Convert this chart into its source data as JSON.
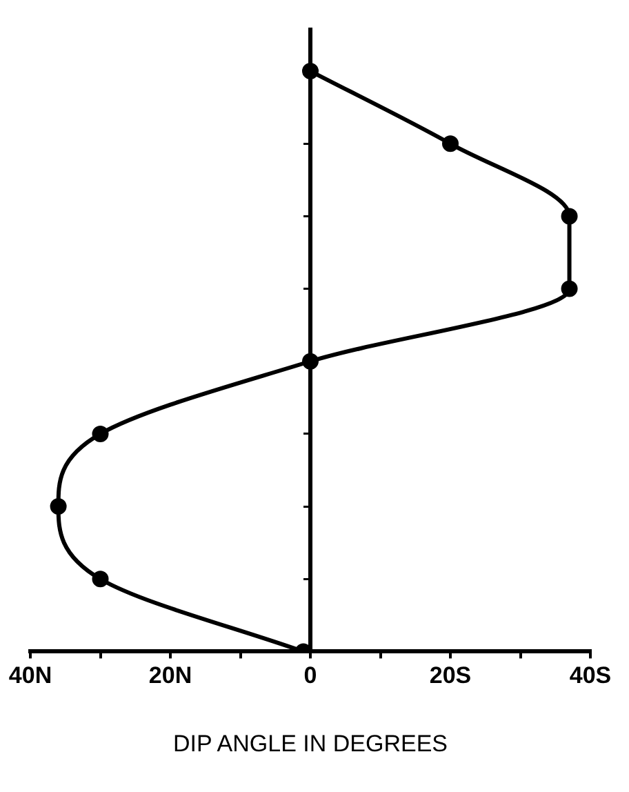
{
  "chart_data": {
    "type": "line",
    "orientation": "horizontal",
    "xlabel": "DIP ANGLE IN DEGREES",
    "categories": [
      null,
      null,
      null,
      null,
      null,
      null,
      null,
      null,
      null
    ],
    "series": [
      {
        "color": "#000000",
        "values": [
          0,
          20,
          37,
          37,
          0,
          -30,
          -36,
          -30,
          -1
        ]
      }
    ],
    "xlim": [
      -40,
      40
    ],
    "xticks": [
      {
        "value": -40,
        "label": "40N"
      },
      {
        "value": -30,
        "label": null
      },
      {
        "value": -20,
        "label": "20N"
      },
      {
        "value": -10,
        "label": null
      },
      {
        "value": 0,
        "label": "0"
      },
      {
        "value": 10,
        "label": null
      },
      {
        "value": 20,
        "label": "20S"
      },
      {
        "value": 30,
        "label": null
      },
      {
        "value": 40,
        "label": "40S"
      }
    ],
    "ref_lines": [
      {
        "axis": "x",
        "value": 0,
        "color": "#000000"
      }
    ],
    "tick_labels": "x",
    "marker": "circle",
    "line_style": "solid",
    "grid": false,
    "legend": false
  }
}
